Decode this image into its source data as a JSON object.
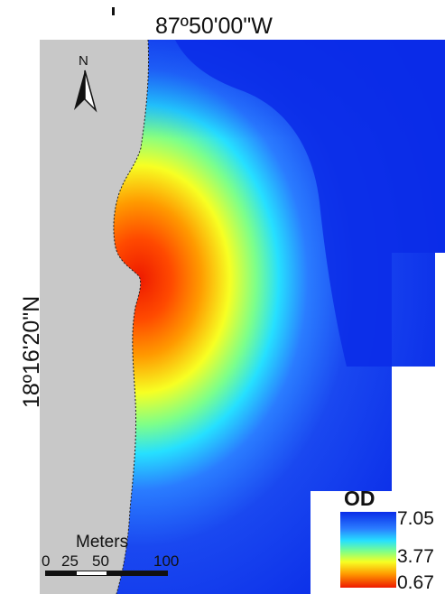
{
  "labels": {
    "longitude": "87º50'00\"W",
    "latitude": "18º16'20\"N"
  },
  "north_arrow": {
    "letter": "N",
    "icon": "north-arrow-icon"
  },
  "legend": {
    "title": "OD",
    "max": "7.05",
    "mid": "3.77",
    "min": "0.67",
    "colors": [
      "#0a2ce8",
      "#2a7cff",
      "#26e0ff",
      "#7dff8a",
      "#f7ff23",
      "#ff9a00",
      "#ee1a00"
    ]
  },
  "scale_bar": {
    "unit": "Meters",
    "ticks": [
      "0",
      "25",
      "50",
      "100"
    ]
  },
  "colors": {
    "land": "#c8c8c8",
    "deep_water": "#0a2ce8",
    "shallow_water": "#ee1a00"
  }
}
